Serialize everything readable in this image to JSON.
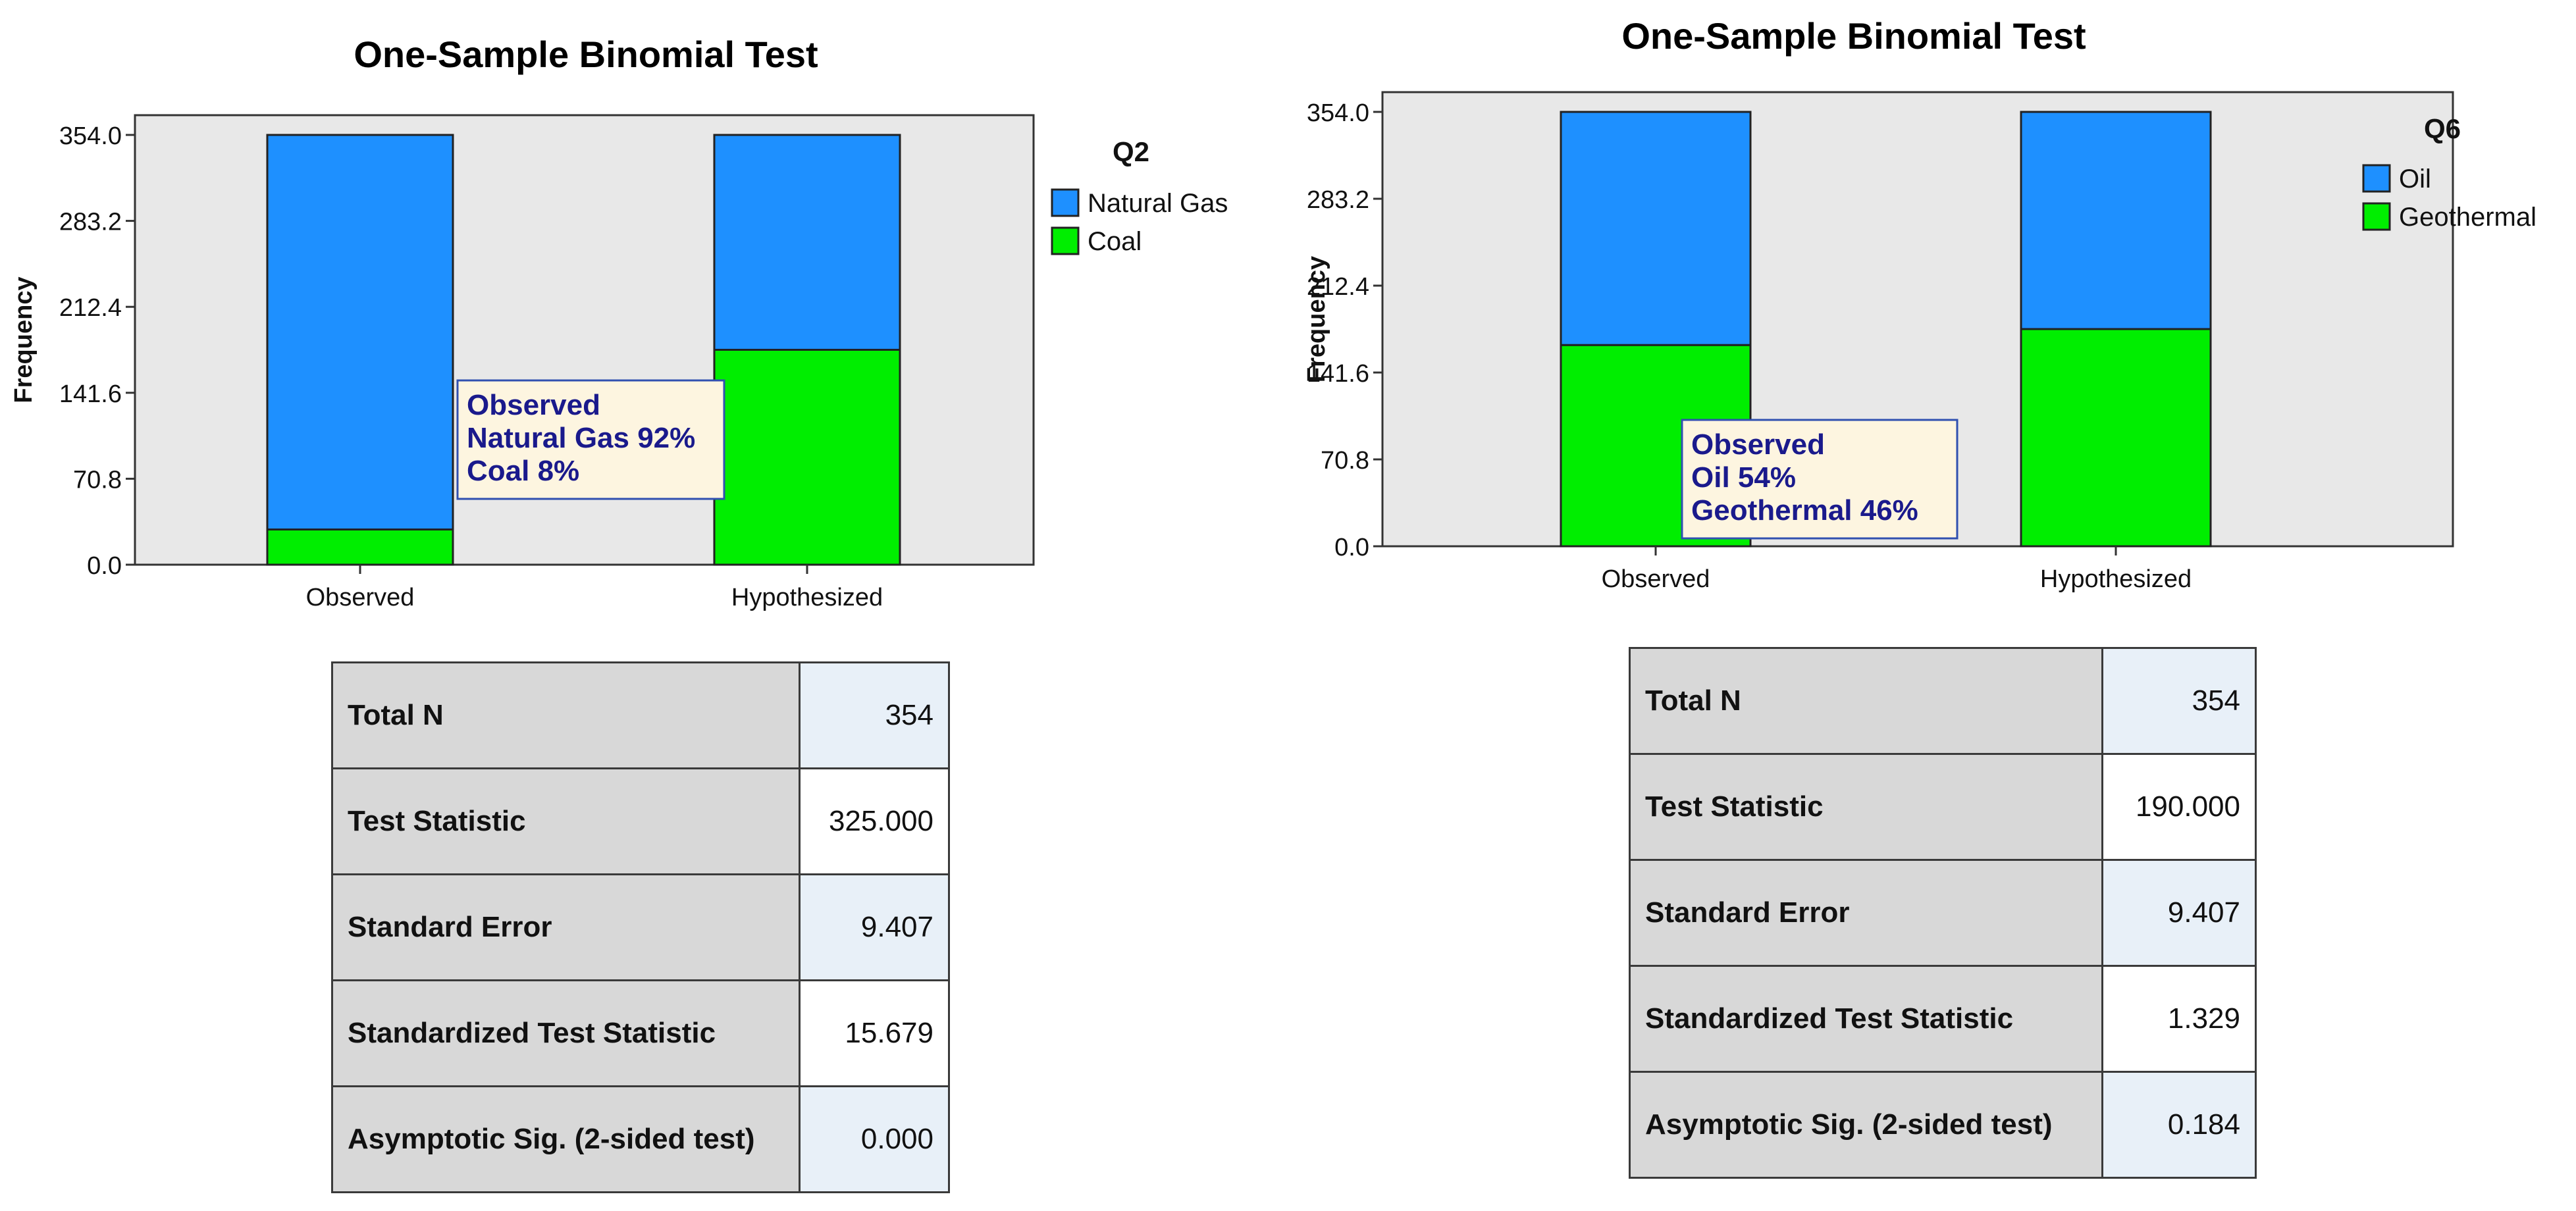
{
  "colors": {
    "primary": "#1e90ff",
    "secondary": "#00ee00",
    "plot_bg": "#e8e8e8",
    "annotation_bg": "#fdf5e0",
    "annotation_text": "#1a1a8c"
  },
  "charts": [
    {
      "title": "One-Sample Binomial Test",
      "ylabel": "Frequency",
      "legend": {
        "title": "Q2",
        "items": [
          "Natural Gas",
          "Coal"
        ]
      },
      "annotation": [
        "Observed",
        "Natural Gas 92%",
        "Coal 8%"
      ],
      "stats": [
        {
          "label": "Total N",
          "value": "354"
        },
        {
          "label": "Test Statistic",
          "value": "325.000"
        },
        {
          "label": "Standard Error",
          "value": "9.407"
        },
        {
          "label": "Standardized Test Statistic",
          "value": "15.679"
        },
        {
          "label": "Asymptotic Sig. (2-sided test)",
          "value": "0.000"
        }
      ]
    },
    {
      "title": "One-Sample Binomial Test",
      "ylabel": "Frequency",
      "legend": {
        "title": "Q6",
        "items": [
          "Oil",
          "Geothermal"
        ]
      },
      "annotation": [
        "Observed",
        "Oil 54%",
        "Geothermal 46%"
      ],
      "stats": [
        {
          "label": "Total N",
          "value": "354"
        },
        {
          "label": "Test Statistic",
          "value": "190.000"
        },
        {
          "label": "Standard Error",
          "value": "9.407"
        },
        {
          "label": "Standardized Test Statistic",
          "value": "1.329"
        },
        {
          "label": "Asymptotic Sig. (2-sided test)",
          "value": "0.184"
        }
      ]
    }
  ],
  "chart_data": [
    {
      "type": "bar",
      "stacked": true,
      "title": "One-Sample Binomial Test",
      "xlabel": "",
      "ylabel": "Frequency",
      "categories": [
        "Observed",
        "Hypothesized"
      ],
      "series": [
        {
          "name": "Coal",
          "values": [
            29,
            177
          ]
        },
        {
          "name": "Natural Gas",
          "values": [
            325,
            177
          ]
        }
      ],
      "ylim": [
        0,
        354
      ],
      "yticks": [
        "0.0",
        "70.8",
        "141.6",
        "212.4",
        "283.2",
        "354.0"
      ],
      "grid": false,
      "legend_position": "right"
    },
    {
      "type": "bar",
      "stacked": true,
      "title": "One-Sample Binomial Test",
      "xlabel": "",
      "ylabel": "Frequency",
      "categories": [
        "Observed",
        "Hypothesized"
      ],
      "series": [
        {
          "name": "Geothermal",
          "values": [
            164,
            177
          ]
        },
        {
          "name": "Oil",
          "values": [
            190,
            177
          ]
        }
      ],
      "ylim": [
        0,
        354
      ],
      "yticks": [
        "0.0",
        "70.8",
        "141.6",
        "212.4",
        "283.2",
        "354.0"
      ],
      "grid": false,
      "legend_position": "right"
    }
  ]
}
